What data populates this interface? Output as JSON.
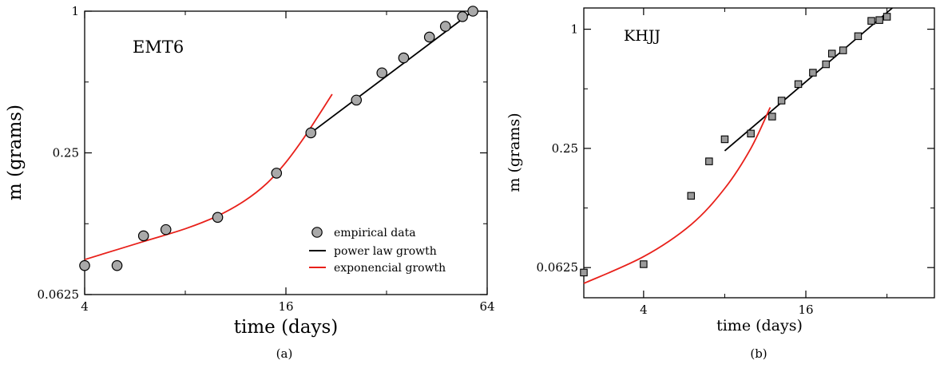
{
  "chart_data": [
    {
      "type": "scatter",
      "panel_label": "(a)",
      "annotation": "EMT6",
      "xlabel": "time (days)",
      "ylabel": "m (grams)",
      "xscale": "log2",
      "yscale": "log2",
      "xlim": [
        4,
        64
      ],
      "ylim": [
        0.0625,
        1
      ],
      "xticks": [
        4,
        16,
        64
      ],
      "xtick_labels": [
        "4",
        "16",
        "64"
      ],
      "yticks": [
        0.0625,
        0.25,
        1
      ],
      "ytick_labels": [
        "0.0625",
        "0.25",
        "1"
      ],
      "marker": "circle",
      "legend_position": "bottom-right",
      "legend": [
        {
          "label": "empirical data",
          "kind": "marker"
        },
        {
          "label": "power law growth",
          "kind": "line",
          "color": "#000000"
        },
        {
          "label": "exponencial growth",
          "kind": "line",
          "color": "#e8201a"
        }
      ],
      "series": [
        {
          "name": "empirical data",
          "kind": "points",
          "x": [
            4.0,
            5.0,
            6.0,
            7.0,
            10.0,
            15.0,
            19.0,
            26.0,
            31.0,
            36.0,
            43.0,
            48.0,
            54.0,
            58.0
          ],
          "y": [
            0.083,
            0.083,
            0.111,
            0.118,
            0.133,
            0.205,
            0.304,
            0.419,
            0.547,
            0.633,
            0.776,
            0.862,
            0.948,
            1.0
          ]
        },
        {
          "name": "power law growth",
          "kind": "line",
          "color": "#000000",
          "x": [
            19.0,
            58.0
          ],
          "y": [
            0.304,
            1.0
          ]
        },
        {
          "name": "exponencial growth",
          "kind": "line",
          "color": "#e8201a",
          "x": [
            4.0,
            6.0,
            8.0,
            10.0,
            12.0,
            14.0,
            16.0,
            18.0,
            20.0,
            22.0
          ],
          "y": [
            0.088,
            0.105,
            0.119,
            0.135,
            0.156,
            0.185,
            0.228,
            0.286,
            0.359,
            0.444
          ]
        }
      ]
    },
    {
      "type": "scatter",
      "panel_label": "(b)",
      "annotation": "KHJJ",
      "xlabel": "time (days)",
      "ylabel": "m (grams)",
      "xscale": "log2",
      "yscale": "log2",
      "xlim": [
        2.4,
        48
      ],
      "ylim": [
        0.044,
        1.28
      ],
      "xticks": [
        4,
        16
      ],
      "xtick_labels": [
        "4",
        "16"
      ],
      "yticks": [
        0.0625,
        0.25,
        1
      ],
      "ytick_labels": [
        "0.0625",
        "0.25",
        "1"
      ],
      "marker": "square",
      "series": [
        {
          "name": "empirical data",
          "kind": "points",
          "x": [
            2.4,
            4.0,
            6.0,
            7.0,
            8.0,
            10.0,
            12.0,
            13.0,
            15.0,
            17.0,
            19.0,
            20.0,
            22.0,
            25.0,
            28.0,
            30.0,
            32.0
          ],
          "y": [
            0.059,
            0.065,
            0.144,
            0.215,
            0.278,
            0.297,
            0.362,
            0.436,
            0.528,
            0.603,
            0.665,
            0.753,
            0.782,
            0.922,
            1.102,
            1.112,
            1.156
          ]
        },
        {
          "name": "power law growth",
          "kind": "line",
          "color": "#000000",
          "x": [
            8.0,
            33.5
          ],
          "y": [
            0.243,
            1.28
          ]
        },
        {
          "name": "exponencial growth",
          "kind": "line",
          "color": "#e8201a",
          "x": [
            2.4,
            4.0,
            6.0,
            8.0,
            10.0,
            11.8
          ],
          "y": [
            0.052,
            0.071,
            0.103,
            0.157,
            0.25,
            0.403
          ]
        }
      ]
    }
  ]
}
